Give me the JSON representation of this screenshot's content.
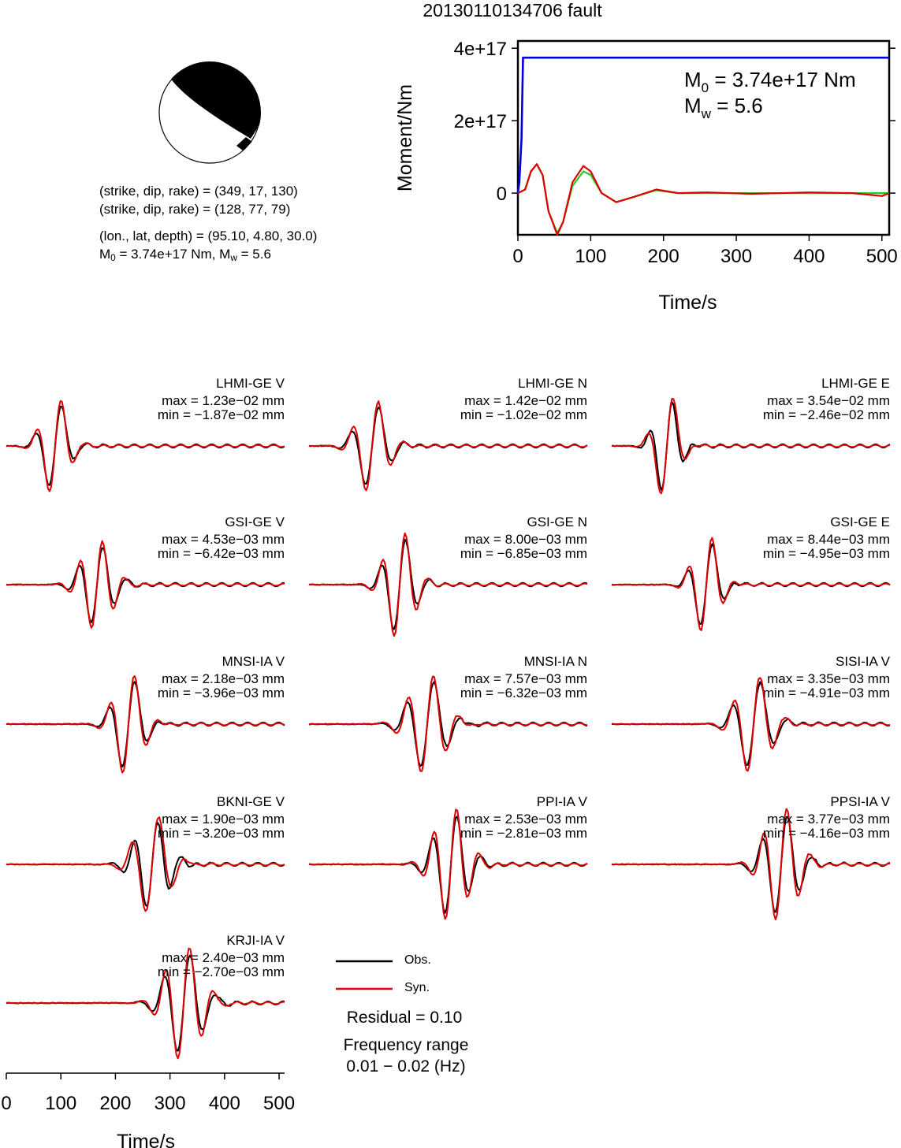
{
  "title": "20130110134706 fault",
  "focal": {
    "plane1": "(strike, dip, rake) = (349, 17, 130)",
    "plane2": "(strike, dip, rake) = (128, 77, 79)",
    "location": "(lon., lat, depth) = (95.10, 4.80, 30.0)",
    "m0_prefix": "M",
    "m0_sub": "0",
    "m0_value": " = 3.74e+17 Nm, M",
    "mw_sub": "w",
    "mw_value": " = 5.6"
  },
  "moment_chart": {
    "type": "line",
    "xlabel": "Time/s",
    "ylabel": "Moment/Nm",
    "xlim": [
      0,
      510
    ],
    "ylim": [
      -1.15e+17,
      4.2e+17
    ],
    "xticks": [
      0,
      100,
      200,
      300,
      400,
      500
    ],
    "yticks": [
      {
        "value": 4e+17,
        "label": "4e+17"
      },
      {
        "value": 2e+17,
        "label": "2e+17"
      },
      {
        "value": 0,
        "label": "0"
      }
    ],
    "m0_label": "M",
    "m0_sub": "0",
    "m0_text": " = 3.74e+17 Nm",
    "mw_label": "M",
    "mw_sub": "w",
    "mw_text": " = 5.6",
    "colors": {
      "cumulative": "#0000dd",
      "rate_a": "#22cc22",
      "rate_b": "#dd0000"
    }
  },
  "waveforms": [
    {
      "station": "LHMI-GE V",
      "max": "max = 1.23e−02 mm",
      "min": "min = −1.87e−02 mm"
    },
    {
      "station": "LHMI-GE N",
      "max": "max = 1.42e−02 mm",
      "min": "min = −1.02e−02 mm"
    },
    {
      "station": "LHMI-GE E",
      "max": "max = 3.54e−02 mm",
      "min": "min = −2.46e−02 mm"
    },
    {
      "station": "GSI-GE V",
      "max": "max = 4.53e−03 mm",
      "min": "min = −6.42e−03 mm"
    },
    {
      "station": "GSI-GE N",
      "max": "max = 8.00e−03 mm",
      "min": "min = −6.85e−03 mm"
    },
    {
      "station": "GSI-GE E",
      "max": "max = 8.44e−03 mm",
      "min": "min = −4.95e−03 mm"
    },
    {
      "station": "MNSI-IA V",
      "max": "max = 2.18e−03 mm",
      "min": "min = −3.96e−03 mm"
    },
    {
      "station": "MNSI-IA N",
      "max": "max = 7.57e−03 mm",
      "min": "min = −6.32e−03 mm"
    },
    {
      "station": "SISI-IA V",
      "max": "max = 3.35e−03 mm",
      "min": "min = −4.91e−03 mm"
    },
    {
      "station": "BKNI-GE V",
      "max": "max = 1.90e−03 mm",
      "min": "min = −3.20e−03 mm"
    },
    {
      "station": "PPI-IA V",
      "max": "max = 2.53e−03 mm",
      "min": "min = −2.81e−03 mm"
    },
    {
      "station": "PPSI-IA V",
      "max": "max = 3.77e−03 mm",
      "min": "min = −4.16e−03 mm"
    },
    {
      "station": "KRJI-IA V",
      "max": "max = 2.40e−03 mm",
      "min": "min = −2.70e−03 mm"
    }
  ],
  "legend": {
    "obs": "Obs.",
    "syn": "Syn.",
    "obs_color": "#000000",
    "syn_color": "#dd0000"
  },
  "residual": "Residual = 0.10",
  "freq_line1": "Frequency range",
  "freq_line2": "0.01 − 0.02 (Hz)",
  "time_axis": {
    "label": "Time/s",
    "ticks": [
      0,
      100,
      200,
      300,
      400,
      500
    ],
    "xlim": [
      0,
      510
    ]
  },
  "chart_data": [
    {
      "type": "line",
      "title": "20130110134706 fault",
      "xlabel": "Time/s",
      "ylabel": "Moment/Nm",
      "xlim": [
        0,
        510
      ],
      "series": [
        {
          "values": [
            [
              0,
              0
            ],
            [
              2,
              3e+16
            ],
            [
              5,
              1.5e+17
            ],
            [
              7,
              3.74e+17
            ],
            [
              100,
              3.74e+17
            ],
            [
              300,
              3.74e+17
            ],
            [
              510,
              3.74e+17
            ]
          ]
        },
        {
          "values": [
            [
              0,
              0
            ],
            [
              10,
              1e+16
            ],
            [
              18,
              6e+16
            ],
            [
              26,
              8e+16
            ],
            [
              34,
              5e+16
            ],
            [
              42,
              -5e+16
            ],
            [
              54,
              -1.1e+17
            ],
            [
              62,
              -8e+16
            ],
            [
              75,
              2e+16
            ],
            [
              90,
              6e+16
            ],
            [
              100,
              5e+16
            ],
            [
              115,
              0.0
            ],
            [
              135,
              -2.5e+16
            ],
            [
              160,
              -1e+16
            ],
            [
              190,
              8000000000000000.0
            ],
            [
              220,
              0.0
            ],
            [
              260,
              0.0
            ],
            [
              320,
              0.0
            ],
            [
              400,
              0.0
            ],
            [
              510,
              0.0
            ]
          ]
        },
        {
          "values": [
            [
              0,
              0
            ],
            [
              10,
              1e+16
            ],
            [
              18,
              6e+16
            ],
            [
              26,
              8e+16
            ],
            [
              34,
              5e+16
            ],
            [
              42,
              -5e+16
            ],
            [
              54,
              -1.15e+17
            ],
            [
              62,
              -8e+16
            ],
            [
              75,
              3e+16
            ],
            [
              90,
              7.5e+16
            ],
            [
              100,
              6e+16
            ],
            [
              115,
              0.0
            ],
            [
              135,
              -2.5e+16
            ],
            [
              160,
              -1e+16
            ],
            [
              190,
              1e+16
            ],
            [
              220,
              0.0
            ],
            [
              260,
              2000000000000000.0
            ],
            [
              320,
              -2000000000000000.0
            ],
            [
              400,
              2000000000000000.0
            ],
            [
              460,
              0.0
            ],
            [
              500,
              -8000000000000000.0
            ],
            [
              510,
              0.0
            ]
          ]
        }
      ]
    },
    {
      "type": "line",
      "xlabel": "Time/s",
      "xlim": [
        0,
        510
      ],
      "series": [
        {
          "name": "Obs."
        },
        {
          "name": "Syn."
        }
      ]
    }
  ]
}
